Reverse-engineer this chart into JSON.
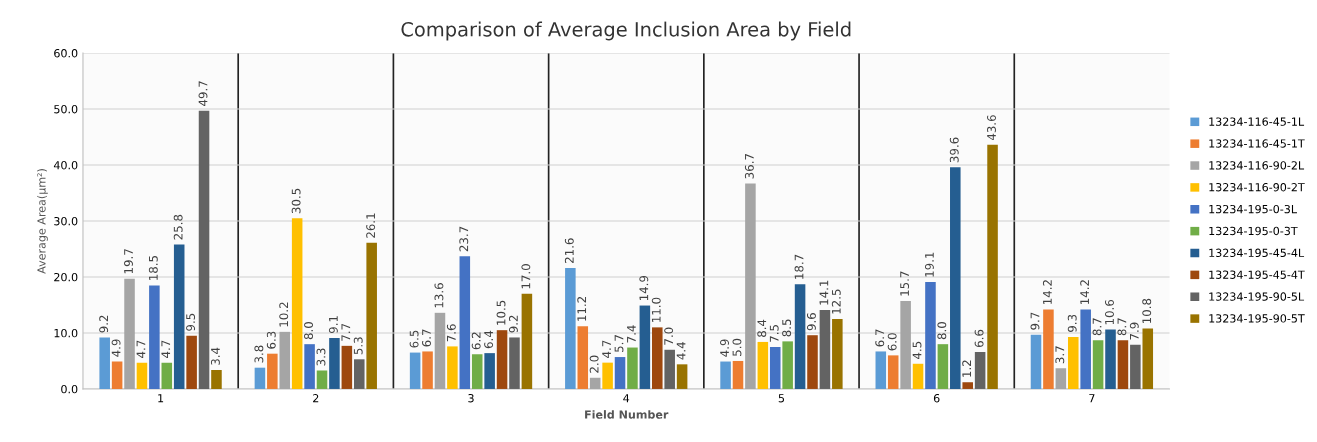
{
  "chart_data": {
    "type": "bar",
    "title": "Comparison of Average Inclusion Area by Field",
    "xlabel": "Field Number",
    "ylabel": "Average Area(μm²)",
    "categories": [
      "1",
      "2",
      "3",
      "4",
      "5",
      "6",
      "7"
    ],
    "ylim": [
      0,
      60
    ],
    "yticks": [
      {
        "value": 0,
        "label": "0.0"
      },
      {
        "value": 10,
        "label": "10.0"
      },
      {
        "value": 20,
        "label": "20.0"
      },
      {
        "value": 30,
        "label": "30.0"
      },
      {
        "value": 40,
        "label": "40.0"
      },
      {
        "value": 50,
        "label": "50.0"
      },
      {
        "value": 60,
        "label": "60.0"
      }
    ],
    "grid": "y",
    "legend": "right",
    "data_labels": true,
    "series": [
      {
        "name": "13234-116-45-1L",
        "color": "#5b9bd5",
        "values": [
          9.2,
          3.8,
          6.5,
          21.6,
          4.9,
          6.7,
          9.7
        ],
        "value_labels": [
          "9.2",
          "3.8",
          "6.5",
          "21.6",
          "4.9",
          "6.7",
          "9.7"
        ]
      },
      {
        "name": "13234-116-45-1T",
        "color": "#ed7d31",
        "values": [
          4.9,
          6.3,
          6.7,
          11.2,
          5.0,
          6.0,
          14.2
        ],
        "value_labels": [
          "4.9",
          "6.3",
          "6.7",
          "11.2",
          "5.0",
          "6.0",
          "14.2"
        ]
      },
      {
        "name": "13234-116-90-2L",
        "color": "#a5a5a5",
        "values": [
          19.7,
          10.2,
          13.6,
          2.0,
          36.7,
          15.7,
          3.7
        ],
        "value_labels": [
          "19.7",
          "10.2",
          "13.6",
          "2.0",
          "36.7",
          "15.7",
          "3.7"
        ]
      },
      {
        "name": "13234-116-90-2T",
        "color": "#ffc000",
        "values": [
          4.7,
          30.5,
          7.6,
          4.7,
          8.4,
          4.5,
          9.3
        ],
        "value_labels": [
          "4.7",
          "30.5",
          "7.6",
          "4.7",
          "8.4",
          "4.5",
          "9.3"
        ]
      },
      {
        "name": "13234-195-0-3L",
        "color": "#4472c4",
        "values": [
          18.5,
          8.0,
          23.7,
          5.7,
          7.5,
          19.1,
          14.2
        ],
        "value_labels": [
          "18.5",
          "8.0",
          "23.7",
          "5.7",
          "7.5",
          "19.1",
          "14.2"
        ]
      },
      {
        "name": "13234-195-0-3T",
        "color": "#70ad47",
        "values": [
          4.7,
          3.3,
          6.2,
          7.4,
          8.5,
          8.0,
          8.7
        ],
        "value_labels": [
          "4.7",
          "3.3",
          "6.2",
          "7.4",
          "8.5",
          "8.0",
          "8.7"
        ]
      },
      {
        "name": "13234-195-45-4L",
        "color": "#255e91",
        "values": [
          25.8,
          9.1,
          6.4,
          14.9,
          18.7,
          39.6,
          10.6
        ],
        "value_labels": [
          "25.8",
          "9.1",
          "6.4",
          "14.9",
          "18.7",
          "39.6",
          "10.6"
        ]
      },
      {
        "name": "13234-195-45-4T",
        "color": "#9e480e",
        "values": [
          9.5,
          7.7,
          10.5,
          11.0,
          9.6,
          1.2,
          8.7
        ],
        "value_labels": [
          "9.5",
          "7.7",
          "10.5",
          "11.0",
          "9.6",
          "1.2",
          "8.7"
        ]
      },
      {
        "name": "13234-195-90-5L",
        "color": "#636363",
        "values": [
          49.7,
          5.3,
          9.2,
          7.0,
          14.1,
          6.6,
          7.9
        ],
        "value_labels": [
          "49.7",
          "5.3",
          "9.2",
          "7.0",
          "14.1",
          "6.6",
          "7.9"
        ]
      },
      {
        "name": "13234-195-90-5T",
        "color": "#997300",
        "values": [
          3.4,
          26.1,
          17.0,
          4.4,
          12.5,
          43.6,
          10.8
        ],
        "value_labels": [
          "3.4",
          "26.1",
          "17.0",
          "4.4",
          "12.5",
          "43.6",
          "10.8"
        ]
      }
    ]
  }
}
